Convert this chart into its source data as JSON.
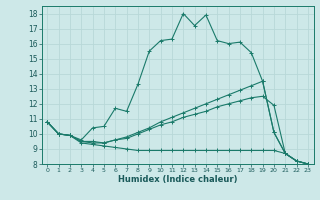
{
  "xlabel": "Humidex (Indice chaleur)",
  "bg_color": "#cde8e8",
  "grid_color": "#b8d8d8",
  "line_color": "#1a7a6a",
  "xlim": [
    -0.5,
    23.5
  ],
  "ylim": [
    8,
    18.5
  ],
  "xticks": [
    0,
    1,
    2,
    3,
    4,
    5,
    6,
    7,
    8,
    9,
    10,
    11,
    12,
    13,
    14,
    15,
    16,
    17,
    18,
    19,
    20,
    21,
    22,
    23
  ],
  "yticks": [
    8,
    9,
    10,
    11,
    12,
    13,
    14,
    15,
    16,
    17,
    18
  ],
  "lines": [
    {
      "x": [
        0,
        1,
        2,
        3,
        4,
        5,
        6,
        7,
        8,
        9,
        10,
        11,
        12,
        13,
        14,
        15,
        16,
        17,
        18,
        19,
        20,
        21,
        22,
        23
      ],
      "y": [
        10.8,
        10.0,
        9.9,
        9.6,
        10.4,
        10.5,
        11.7,
        11.5,
        13.3,
        15.5,
        16.2,
        16.3,
        18.0,
        17.2,
        17.9,
        16.2,
        16.0,
        16.1,
        15.4,
        13.5,
        10.1,
        8.7,
        8.2,
        8.0
      ]
    },
    {
      "x": [
        0,
        1,
        2,
        3,
        4,
        5,
        6,
        7,
        8,
        9,
        10,
        11,
        12,
        13,
        14,
        15,
        16,
        17,
        18,
        19,
        20,
        21,
        22,
        23
      ],
      "y": [
        10.8,
        10.0,
        9.9,
        9.5,
        9.4,
        9.4,
        9.6,
        9.8,
        10.1,
        10.4,
        10.8,
        11.1,
        11.4,
        11.7,
        12.0,
        12.3,
        12.6,
        12.9,
        13.2,
        13.5,
        10.1,
        8.7,
        8.2,
        8.0
      ]
    },
    {
      "x": [
        0,
        1,
        2,
        3,
        4,
        5,
        6,
        7,
        8,
        9,
        10,
        11,
        12,
        13,
        14,
        15,
        16,
        17,
        18,
        19,
        20,
        21,
        22,
        23
      ],
      "y": [
        10.8,
        10.0,
        9.9,
        9.5,
        9.5,
        9.4,
        9.6,
        9.7,
        10.0,
        10.3,
        10.6,
        10.8,
        11.1,
        11.3,
        11.5,
        11.8,
        12.0,
        12.2,
        12.4,
        12.5,
        11.9,
        8.7,
        8.2,
        8.0
      ]
    },
    {
      "x": [
        0,
        1,
        2,
        3,
        4,
        5,
        6,
        7,
        8,
        9,
        10,
        11,
        12,
        13,
        14,
        15,
        16,
        17,
        18,
        19,
        20,
        21,
        22,
        23
      ],
      "y": [
        10.8,
        10.0,
        9.9,
        9.4,
        9.3,
        9.2,
        9.1,
        9.0,
        8.9,
        8.9,
        8.9,
        8.9,
        8.9,
        8.9,
        8.9,
        8.9,
        8.9,
        8.9,
        8.9,
        8.9,
        8.9,
        8.7,
        8.2,
        8.0
      ]
    }
  ]
}
